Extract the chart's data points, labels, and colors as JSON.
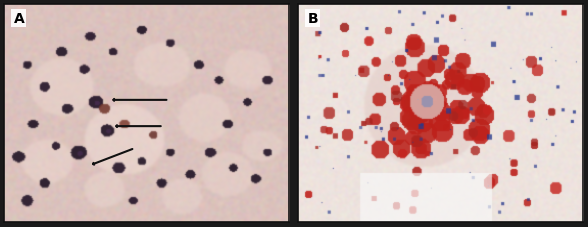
{
  "fig_width": 5.88,
  "fig_height": 2.28,
  "dpi": 100,
  "panel_A_label": "A",
  "panel_B_label": "B",
  "label_fontsize": 10,
  "label_fontweight": "bold",
  "border_color": "#111111",
  "border_lw": 1.2,
  "fig_bg": "#1a1a1a",
  "panel_A_bg_rgb": [
    220,
    195,
    190
  ],
  "panel_B_bg_rgb": [
    238,
    228,
    222
  ]
}
